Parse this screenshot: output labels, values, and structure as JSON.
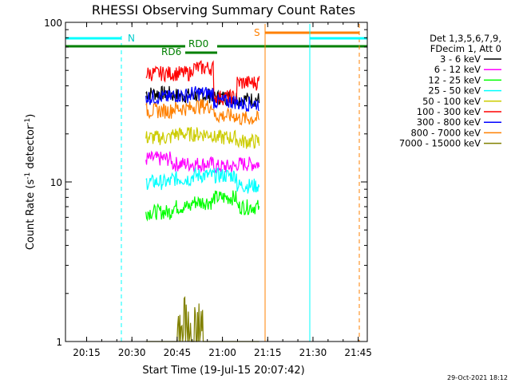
{
  "chart_data": {
    "type": "line",
    "title": "RHESSI Observing Summary Count Rates",
    "xlabel": "Start Time (19-Jul-15 20:07:42)",
    "ylabel_main": "Count Rate (s",
    "ylabel_sup1": "-1",
    "ylabel_mid": " detector",
    "ylabel_sup2": "-1",
    "ylabel_end": ")",
    "yscale": "log",
    "ylim": [
      1,
      100
    ],
    "xlim_minutes": [
      20.133,
      21.8
    ],
    "x_ticks": [
      {
        "label": "20:15",
        "t": 20.25
      },
      {
        "label": "20:30",
        "t": 20.5
      },
      {
        "label": "20:45",
        "t": 20.75
      },
      {
        "label": "21:00",
        "t": 21.0
      },
      {
        "label": "21:15",
        "t": 21.25
      },
      {
        "label": "21:30",
        "t": 21.5
      },
      {
        "label": "21:45",
        "t": 21.75
      }
    ],
    "y_ticks": [
      {
        "label": "1",
        "v": 1
      },
      {
        "label": "10",
        "v": 10
      },
      {
        "label": "100",
        "v": 100
      }
    ],
    "legend_header": [
      "Det 1,3,5,6,7,9,",
      "FDecim 1, Att 0"
    ],
    "legend_position": "right",
    "series": [
      {
        "name": "3 - 6 keV",
        "color": "#000000",
        "values": [
          36,
          35,
          35,
          34,
          33,
          31
        ]
      },
      {
        "name": "6 - 12 keV",
        "color": "#ff00ff",
        "values": [
          14,
          13,
          13,
          12.5,
          13,
          12
        ]
      },
      {
        "name": "12 - 25 keV",
        "color": "#00ff00",
        "values": [
          6.5,
          7,
          7.5,
          8,
          7,
          6.5
        ]
      },
      {
        "name": "25 - 50 keV",
        "color": "#00ffff",
        "values": [
          10,
          10.5,
          11,
          11,
          9.5,
          9
        ]
      },
      {
        "name": "50 - 100 keV",
        "color": "#cccc00",
        "values": [
          19,
          20,
          20,
          19,
          18,
          17
        ]
      },
      {
        "name": "100 - 300 keV",
        "color": "#ff0000",
        "values": [
          48,
          48,
          52,
          34,
          42,
          44
        ]
      },
      {
        "name": "300 - 800 keV",
        "color": "#0000ff",
        "values": [
          34,
          35,
          36,
          32,
          31,
          31
        ]
      },
      {
        "name": "800 - 7000 keV",
        "color": "#ff8000",
        "values": [
          28,
          29,
          30,
          26,
          25,
          24
        ]
      },
      {
        "name": "7000 - 15000 keV",
        "color": "#808000",
        "values": [
          1,
          1,
          1.5,
          1,
          1,
          1
        ]
      }
    ],
    "segment_times": [
      20.58,
      20.72,
      20.83,
      20.95,
      21.08,
      21.2
    ],
    "annotations": {
      "night_label": "N",
      "saa_label": "S",
      "rd0_label": "RD0",
      "rd6_label": "RD6"
    },
    "footer_date": "29-Oct-2021 18:12"
  }
}
